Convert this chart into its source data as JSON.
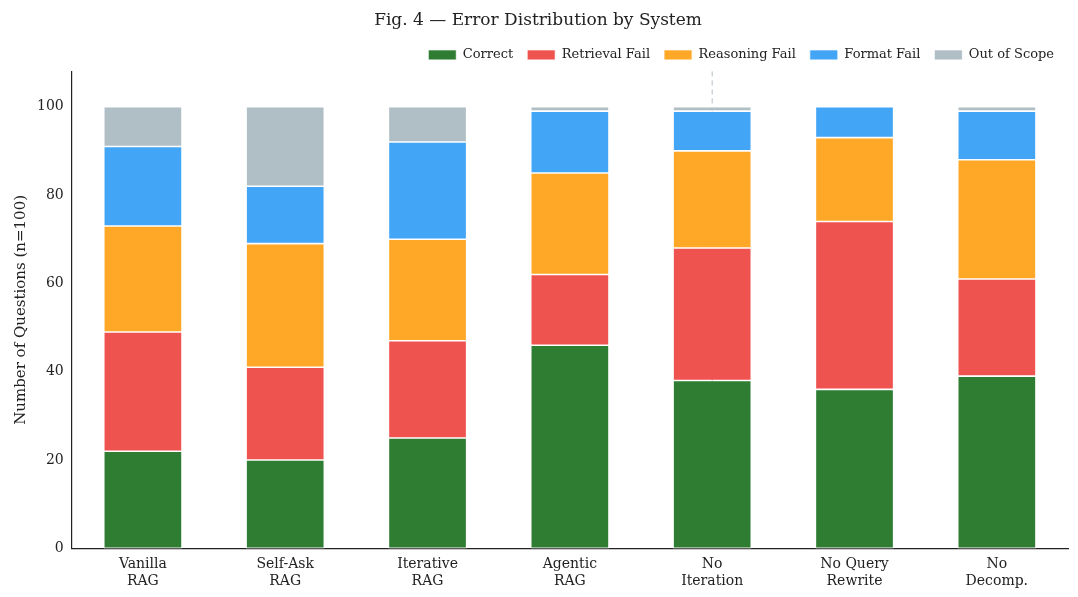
{
  "chart_data": {
    "type": "bar",
    "title": "Fig. 4 — Error Distribution by System",
    "ylabel": "Number of Questions (n=100)",
    "categories": [
      "Vanilla\nRAG",
      "Self-Ask\nRAG",
      "Iterative\nRAG",
      "Agentic\nRAG",
      "No\nIteration",
      "No Query\nRewrite",
      "No\nDecomp."
    ],
    "stacked": true,
    "ylim": [
      0,
      108
    ],
    "yticks": [
      0,
      20,
      40,
      60,
      80,
      100
    ],
    "grid": false,
    "legend": "top right",
    "ref_lines": [
      {
        "axis": "x",
        "value": "No\nIteration",
        "color": "#b0bec5",
        "line_style": "dashed"
      }
    ],
    "series": [
      {
        "name": "Correct",
        "color": "#2e7d32",
        "values": [
          22,
          20,
          25,
          46,
          38,
          36,
          39
        ]
      },
      {
        "name": "Retrieval Fail",
        "color": "#ef5350",
        "values": [
          27,
          21,
          22,
          16,
          30,
          38,
          22
        ]
      },
      {
        "name": "Reasoning Fail",
        "color": "#ffa726",
        "values": [
          24,
          28,
          23,
          23,
          22,
          19,
          27
        ]
      },
      {
        "name": "Format Fail",
        "color": "#42a5f5",
        "values": [
          18,
          13,
          22,
          14,
          9,
          7,
          11
        ]
      },
      {
        "name": "Out of Scope",
        "color": "#b0bec5",
        "values": [
          9,
          18,
          8,
          1,
          1,
          0,
          1
        ]
      }
    ]
  }
}
